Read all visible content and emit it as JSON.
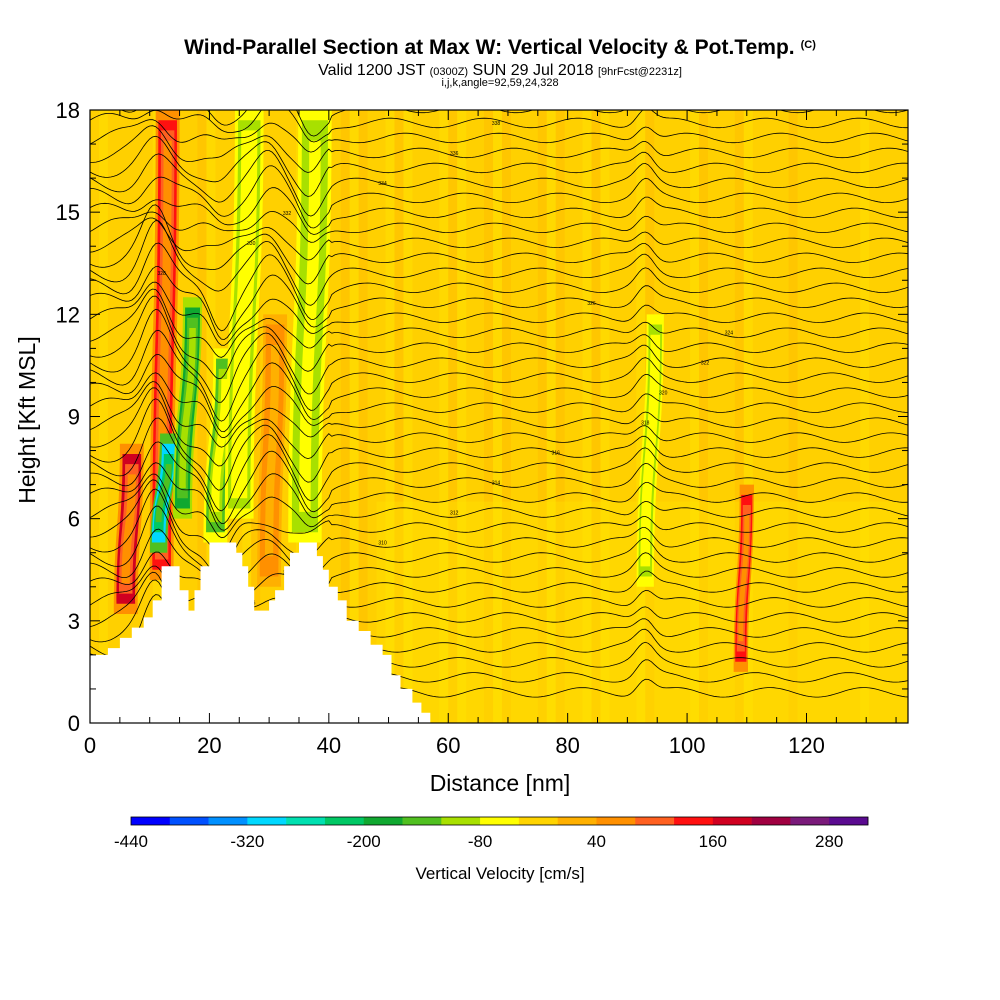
{
  "header": {
    "title": "Wind-Parallel Section at Max W: Vertical Velocity & Pot.Temp.",
    "copyright": "(C)",
    "valid_prefix": "Valid 1200 JST",
    "valid_utc": "(0300Z)",
    "valid_date": "SUN 29 Jul 2018",
    "forecast": "[9hrFcst@2231z]",
    "grid_info": "i,j,k,angle=92,59,24,328"
  },
  "chart_data": {
    "type": "heatmap",
    "title": "Wind-Parallel Section at Max W: Vertical Velocity & Pot.Temp.",
    "xlabel": "Distance [nm]",
    "ylabel": "Height [Kft MSL]",
    "xlim": [
      0,
      137
    ],
    "ylim": [
      0,
      18
    ],
    "x_ticks": [
      0,
      20,
      40,
      60,
      80,
      100,
      120
    ],
    "y_ticks": [
      0,
      3,
      6,
      9,
      12,
      15,
      18
    ],
    "colorbar": {
      "label": "Vertical Velocity [cm/s]",
      "range": [
        -440,
        360
      ],
      "tick_labels": [
        "-440",
        "-320",
        "-200",
        "-80",
        "40",
        "160",
        "280"
      ],
      "colors": [
        "#0000ff",
        "#0050ff",
        "#0090ff",
        "#00d8ff",
        "#00e0b0",
        "#00c864",
        "#10a830",
        "#50c020",
        "#a8e000",
        "#ffff00",
        "#ffd400",
        "#ffb000",
        "#ff9000",
        "#ff6020",
        "#ff1010",
        "#d00020",
        "#a00040",
        "#7a1a7a",
        "#5a0a90"
      ]
    },
    "terrain_profile": [
      [
        0,
        2
      ],
      [
        3,
        2
      ],
      [
        3,
        2.2
      ],
      [
        5,
        2.2
      ],
      [
        5,
        2.5
      ],
      [
        7,
        2.5
      ],
      [
        7,
        2.8
      ],
      [
        9,
        2.8
      ],
      [
        9,
        3.1
      ],
      [
        10.5,
        3.1
      ],
      [
        10.5,
        3.6
      ],
      [
        12,
        3.6
      ],
      [
        12,
        4.6
      ],
      [
        15,
        4.6
      ],
      [
        15,
        3.9
      ],
      [
        16.5,
        3.9
      ],
      [
        16.5,
        3.3
      ],
      [
        17.5,
        3.3
      ],
      [
        17.5,
        3.9
      ],
      [
        18.5,
        3.9
      ],
      [
        18.5,
        4.6
      ],
      [
        20,
        4.6
      ],
      [
        20,
        5.3
      ],
      [
        24.5,
        5.3
      ],
      [
        24.5,
        5
      ],
      [
        25.5,
        5
      ],
      [
        25.5,
        4.6
      ],
      [
        26.5,
        4.6
      ],
      [
        26.5,
        4
      ],
      [
        27.5,
        4
      ],
      [
        27.5,
        3.3
      ],
      [
        30,
        3.3
      ],
      [
        30,
        3.6
      ],
      [
        31,
        3.6
      ],
      [
        31,
        3.9
      ],
      [
        32.5,
        3.9
      ],
      [
        32.5,
        4.6
      ],
      [
        33.5,
        4.6
      ],
      [
        33.5,
        5
      ],
      [
        35,
        5
      ],
      [
        35,
        5.3
      ],
      [
        38,
        5.3
      ],
      [
        38,
        4.9
      ],
      [
        39,
        4.9
      ],
      [
        39,
        4.5
      ],
      [
        40,
        4.5
      ],
      [
        40,
        4
      ],
      [
        41.5,
        4
      ],
      [
        41.5,
        3.6
      ],
      [
        43,
        3.6
      ],
      [
        43,
        3
      ],
      [
        45,
        3
      ],
      [
        45,
        2.7
      ],
      [
        47,
        2.7
      ],
      [
        47,
        2.3
      ],
      [
        49,
        2.3
      ],
      [
        49,
        2
      ],
      [
        50.5,
        2
      ],
      [
        50.5,
        1.4
      ],
      [
        52,
        1.4
      ],
      [
        52,
        1
      ],
      [
        54,
        1
      ],
      [
        54,
        0.6
      ],
      [
        55.5,
        0.6
      ],
      [
        55.5,
        0.3
      ],
      [
        57,
        0.3
      ],
      [
        57,
        0
      ],
      [
        0,
        0
      ]
    ],
    "vertical_velocity_features": [
      {
        "x": 6,
        "y_bottom": 3.2,
        "y_top": 8.2,
        "width_nm": 2.5,
        "peak_cm_s": 260
      },
      {
        "x": 12,
        "y_bottom": 4.2,
        "y_top": 18,
        "width_nm": 2.5,
        "peak_cm_s": 240
      },
      {
        "x": 11.5,
        "y_bottom": 5.0,
        "y_top": 8.5,
        "width_nm": 1.8,
        "peak_cm_s": -400
      },
      {
        "x": 15.5,
        "y_bottom": 6.0,
        "y_top": 12.5,
        "width_nm": 2.0,
        "peak_cm_s": -200
      },
      {
        "x": 21,
        "y_bottom": 5.3,
        "y_top": 11,
        "width_nm": 2.5,
        "peak_cm_s": -160
      },
      {
        "x": 25,
        "y_bottom": 6.0,
        "y_top": 18,
        "width_nm": 3.0,
        "peak_cm_s": -100
      },
      {
        "x": 36,
        "y_bottom": 5.3,
        "y_top": 18,
        "width_nm": 3.5,
        "peak_cm_s": -120
      },
      {
        "x": 30,
        "y_bottom": 4.0,
        "y_top": 12,
        "width_nm": 2.5,
        "peak_cm_s": 130
      },
      {
        "x": 93,
        "y_bottom": 4.0,
        "y_top": 12,
        "width_nm": 1.8,
        "peak_cm_s": -80
      },
      {
        "x": 109,
        "y_bottom": 1.5,
        "y_top": 7.0,
        "width_nm": 1.5,
        "peak_cm_s": 220
      }
    ],
    "potential_temperature_contours": {
      "interval_K": 2,
      "count": 40,
      "label_samples": [
        "304",
        "306",
        "308",
        "310",
        "312",
        "314",
        "316",
        "318",
        "320",
        "322",
        "324",
        "326",
        "328",
        "330",
        "332",
        "334",
        "336",
        "338",
        "340",
        "342"
      ]
    }
  }
}
